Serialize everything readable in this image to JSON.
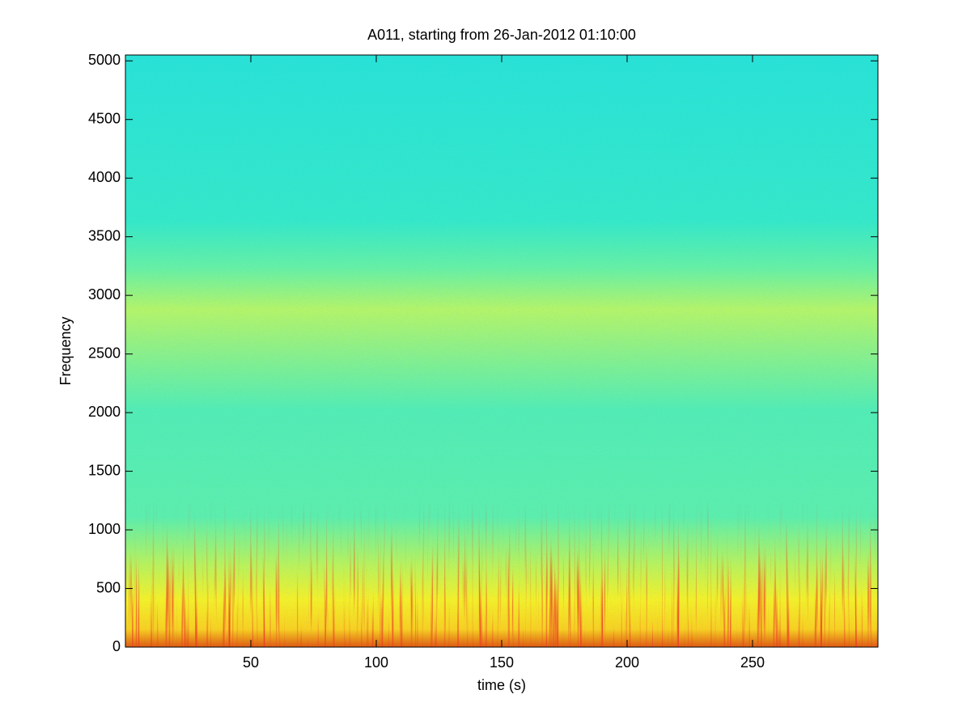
{
  "chart_data": {
    "type": "spectrogram",
    "title": "A011, starting from 26-Jan-2012 01:10:00",
    "xlabel": "time (s)",
    "ylabel": "Frequency",
    "xlim": [
      0,
      300
    ],
    "xticks": [
      50,
      100,
      150,
      200,
      250
    ],
    "ylim": [
      0,
      5050
    ],
    "yticks": [
      0,
      500,
      1000,
      1500,
      2000,
      2500,
      3000,
      3500,
      4000,
      4500,
      5000
    ]
  }
}
